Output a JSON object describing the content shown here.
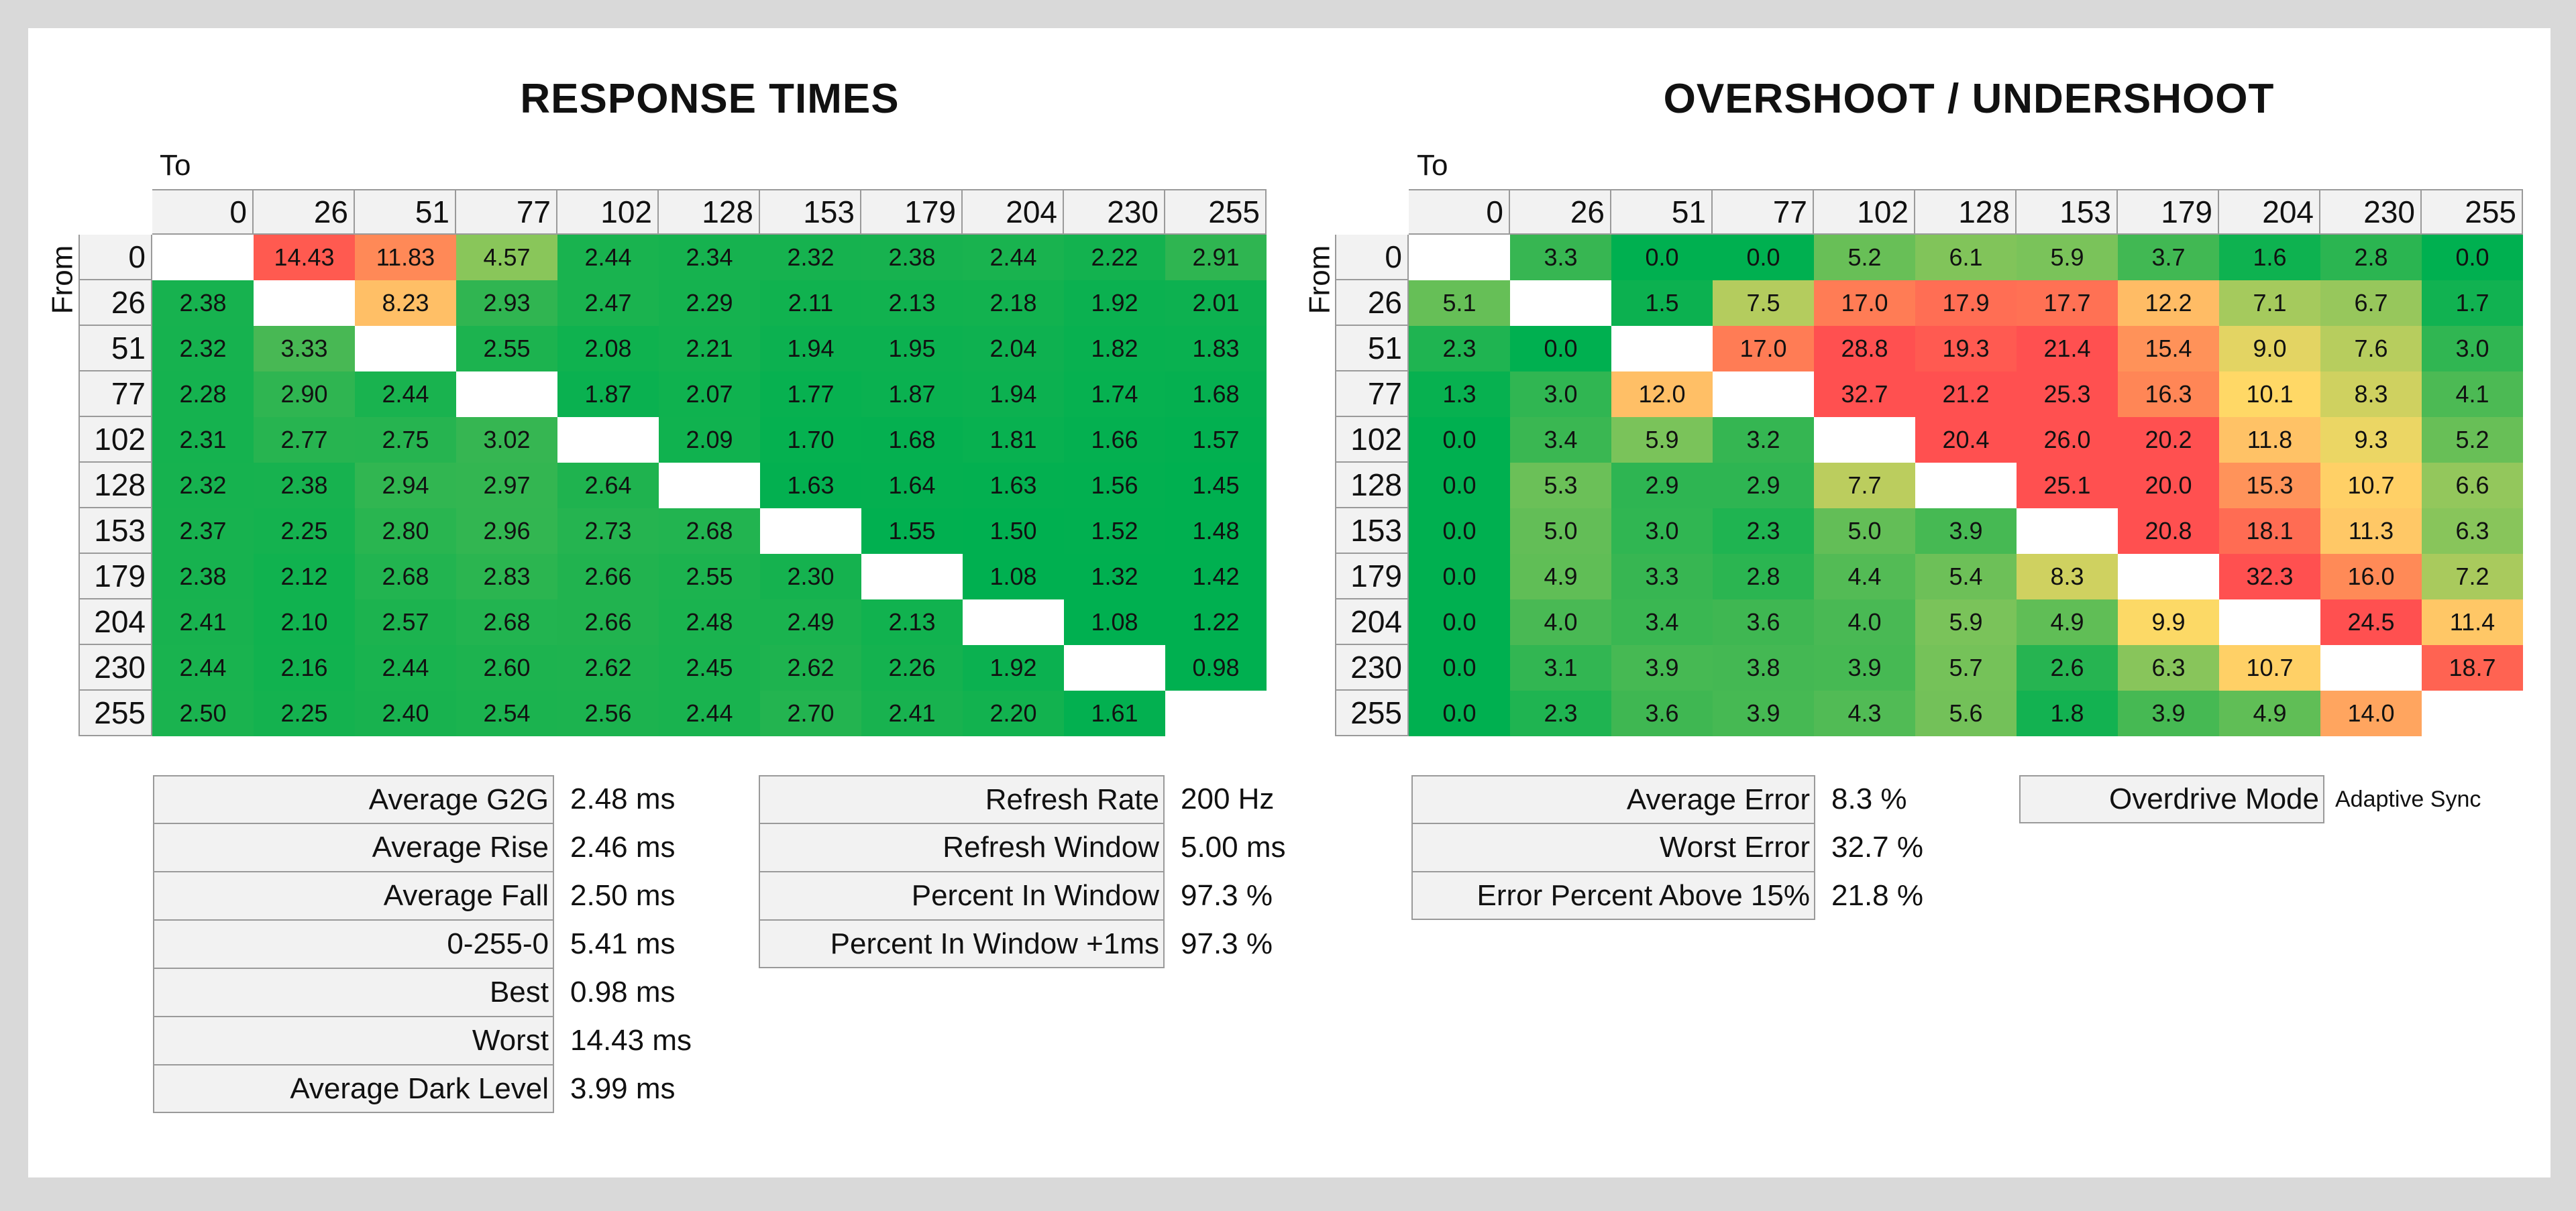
{
  "chart_data": [
    {
      "type": "heatmap",
      "title": "RESPONSE TIMES",
      "xlabel": "To",
      "ylabel": "From",
      "levels": [
        0,
        26,
        51,
        77,
        102,
        128,
        153,
        179,
        204,
        230,
        255
      ],
      "values": [
        [
          null,
          14.43,
          11.83,
          4.57,
          2.44,
          2.34,
          2.32,
          2.38,
          2.44,
          2.22,
          2.91
        ],
        [
          2.38,
          null,
          8.23,
          2.93,
          2.47,
          2.29,
          2.11,
          2.13,
          2.18,
          1.92,
          2.01
        ],
        [
          2.32,
          3.33,
          null,
          2.55,
          2.08,
          2.21,
          1.94,
          1.95,
          2.04,
          1.82,
          1.83
        ],
        [
          2.28,
          2.9,
          2.44,
          null,
          1.87,
          2.07,
          1.77,
          1.87,
          1.94,
          1.74,
          1.68
        ],
        [
          2.31,
          2.77,
          2.75,
          3.02,
          null,
          2.09,
          1.7,
          1.68,
          1.81,
          1.66,
          1.57
        ],
        [
          2.32,
          2.38,
          2.94,
          2.97,
          2.64,
          null,
          1.63,
          1.64,
          1.63,
          1.56,
          1.45
        ],
        [
          2.37,
          2.25,
          2.8,
          2.96,
          2.73,
          2.68,
          null,
          1.55,
          1.5,
          1.52,
          1.48
        ],
        [
          2.38,
          2.12,
          2.68,
          2.83,
          2.66,
          2.55,
          2.3,
          null,
          1.08,
          1.32,
          1.42
        ],
        [
          2.41,
          2.1,
          2.57,
          2.68,
          2.66,
          2.48,
          2.49,
          2.13,
          null,
          1.08,
          1.22
        ],
        [
          2.44,
          2.16,
          2.44,
          2.6,
          2.62,
          2.45,
          2.62,
          2.26,
          1.92,
          null,
          0.98
        ],
        [
          2.5,
          2.25,
          2.4,
          2.54,
          2.56,
          2.44,
          2.7,
          2.41,
          2.2,
          1.61,
          null
        ]
      ],
      "decimals": 2
    },
    {
      "type": "heatmap",
      "title": "OVERSHOOT / UNDERSHOOT",
      "xlabel": "To",
      "ylabel": "From",
      "levels": [
        0,
        26,
        51,
        77,
        102,
        128,
        153,
        179,
        204,
        230,
        255
      ],
      "values": [
        [
          null,
          3.3,
          0.0,
          0.0,
          5.2,
          6.1,
          5.9,
          3.7,
          1.6,
          2.8,
          0.0
        ],
        [
          5.1,
          null,
          1.5,
          7.5,
          17.0,
          17.9,
          17.7,
          12.2,
          7.1,
          6.7,
          1.7
        ],
        [
          2.3,
          0.0,
          null,
          17.0,
          28.8,
          19.3,
          21.4,
          15.4,
          9.0,
          7.6,
          3.0
        ],
        [
          1.3,
          3.0,
          12.0,
          null,
          32.7,
          21.2,
          25.3,
          16.3,
          10.1,
          8.3,
          4.1
        ],
        [
          0.0,
          3.4,
          5.9,
          3.2,
          null,
          20.4,
          26.0,
          20.2,
          11.8,
          9.3,
          5.2
        ],
        [
          0.0,
          5.3,
          2.9,
          2.9,
          7.7,
          null,
          25.1,
          20.0,
          15.3,
          10.7,
          6.6
        ],
        [
          0.0,
          5.0,
          3.0,
          2.3,
          5.0,
          3.9,
          null,
          20.8,
          18.1,
          11.3,
          6.3
        ],
        [
          0.0,
          4.9,
          3.3,
          2.8,
          4.4,
          5.4,
          8.3,
          null,
          32.3,
          16.0,
          7.2
        ],
        [
          0.0,
          4.0,
          3.4,
          3.6,
          4.0,
          5.9,
          4.9,
          9.9,
          null,
          24.5,
          11.4
        ],
        [
          0.0,
          3.1,
          3.9,
          3.8,
          3.9,
          5.7,
          2.6,
          6.3,
          10.7,
          null,
          18.7
        ],
        [
          0.0,
          2.3,
          3.6,
          3.9,
          4.3,
          5.6,
          1.8,
          3.9,
          4.9,
          14.0,
          null
        ]
      ],
      "decimals": 1
    }
  ],
  "rt_stats": [
    {
      "label": "Average G2G",
      "value": "2.48 ms"
    },
    {
      "label": "Average Rise",
      "value": "2.46 ms"
    },
    {
      "label": "Average Fall",
      "value": "2.50 ms"
    },
    {
      "label": "0-255-0",
      "value": "5.41 ms"
    },
    {
      "label": "Best",
      "value": "0.98 ms"
    },
    {
      "label": "Worst",
      "value": "14.43 ms"
    },
    {
      "label": "Average Dark Level",
      "value": "3.99 ms"
    }
  ],
  "refresh_stats": [
    {
      "label": "Refresh Rate",
      "value": "200 Hz"
    },
    {
      "label": "Refresh Window",
      "value": "5.00 ms"
    },
    {
      "label": "Percent In Window",
      "value": "97.3 %"
    },
    {
      "label": "Percent In Window +1ms",
      "value": "97.3 %"
    }
  ],
  "error_stats": [
    {
      "label": "Average Error",
      "value": "8.3 %"
    },
    {
      "label": "Worst Error",
      "value": "32.7 %"
    },
    {
      "label": "Error Percent Above 15%",
      "value": "21.8 %"
    }
  ],
  "overdrive": {
    "label": "Overdrive Mode",
    "value": "Adaptive Sync"
  }
}
